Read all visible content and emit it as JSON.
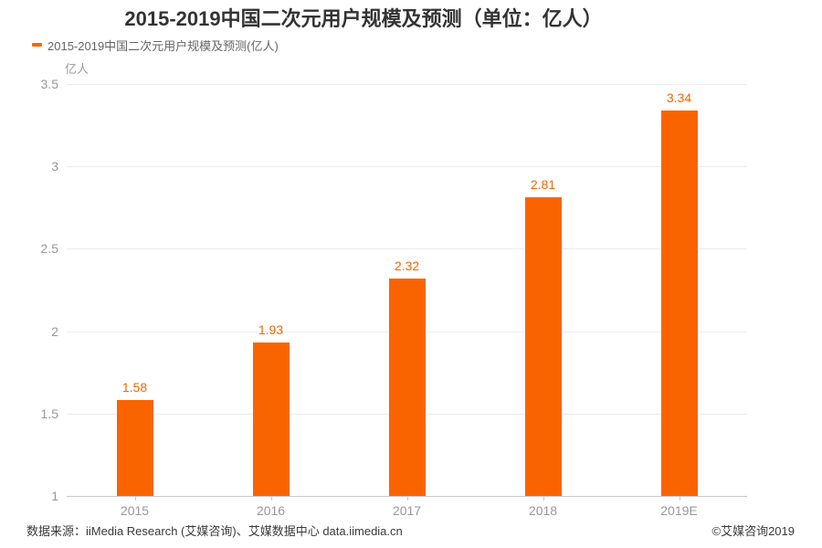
{
  "title": "2015-2019中国二次元用户规模及预测（单位：亿人）",
  "legend": {
    "label": "2015-2019中国二次元用户规模及预测(亿人)",
    "color": "#fa6400"
  },
  "chart_data": {
    "type": "bar",
    "categories": [
      "2015",
      "2016",
      "2017",
      "2018",
      "2019E"
    ],
    "values": [
      1.58,
      1.93,
      2.32,
      2.81,
      3.34
    ],
    "title": "2015-2019中国二次元用户规模及预测（单位：亿人）",
    "xlabel": "",
    "ylabel": "亿人",
    "ylim": [
      1,
      3.5
    ],
    "ytick_step": 0.5,
    "bar_color": "#fa6400",
    "value_label_color": "#fa6400",
    "grid": true,
    "legend": [
      "2015-2019中国二次元用户规模及预测(亿人)"
    ],
    "legend_position": "top-left"
  },
  "footer": {
    "source": "数据来源：iiMedia Research (艾媒咨询)、艾媒数据中心 data.iimedia.cn",
    "copyright": "©艾媒咨询2019"
  }
}
